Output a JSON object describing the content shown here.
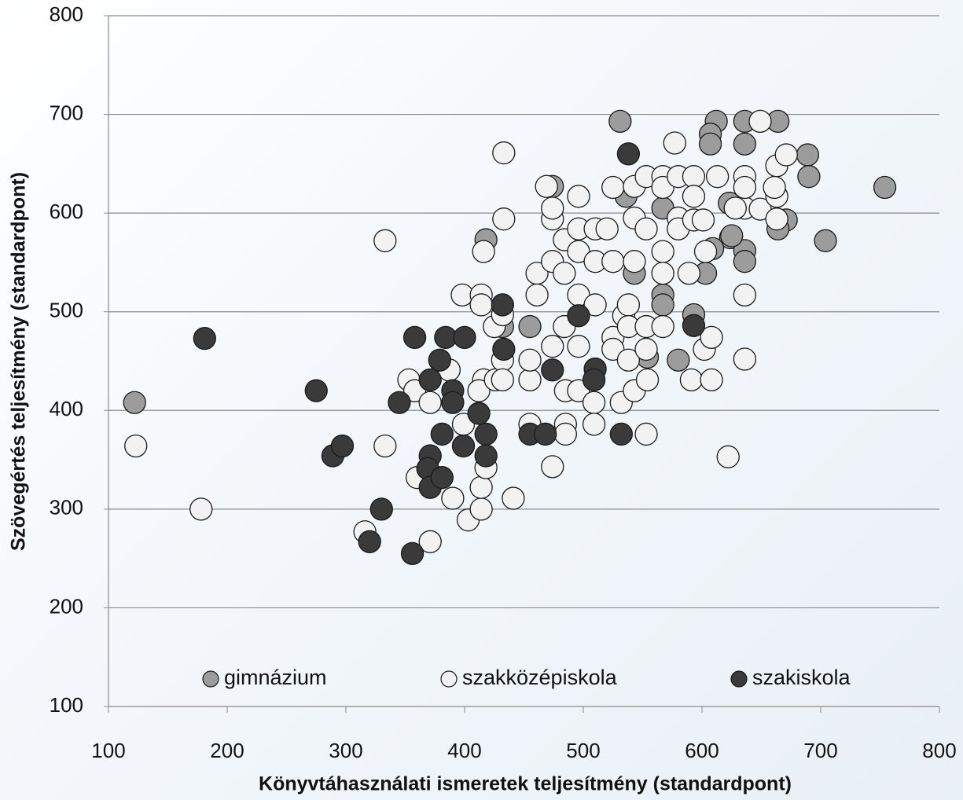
{
  "chart_data": {
    "type": "scatter",
    "x_label": "Könyvtáhasználati ismeretek teljesítmény (standardpont)",
    "y_label": "Szövegértés teljesítmény (standardpont)",
    "xlim": [
      100,
      800
    ],
    "ylim": [
      100,
      800
    ],
    "xticks": [
      100,
      200,
      300,
      400,
      500,
      600,
      700,
      800
    ],
    "yticks": [
      100,
      200,
      300,
      400,
      500,
      600,
      700,
      800
    ],
    "grid": true,
    "legend": "bottom",
    "series": [
      {
        "name": "gimnázium",
        "color": "#9c9c9c",
        "x": [
          122,
          418,
          474,
          531,
          612,
          636,
          664,
          607,
          607,
          636,
          689,
          690,
          754,
          704,
          671,
          664,
          624,
          636,
          636,
          603,
          609,
          623,
          625,
          567,
          567,
          567,
          543,
          554,
          580,
          593,
          455,
          432,
          536
        ],
        "values": [
          408,
          573,
          627,
          693,
          693,
          693,
          693,
          680,
          670,
          670,
          659,
          637,
          626,
          572,
          593,
          584,
          575,
          562,
          551,
          539,
          564,
          610,
          577,
          605,
          517,
          507,
          539,
          454,
          451,
          497,
          485,
          485,
          617
        ]
      },
      {
        "name": "szakközépiskola",
        "color": "#f2f2f2",
        "x": [
          123,
          178,
          333,
          333,
          316,
          371,
          360,
          353,
          358,
          371,
          387,
          398,
          414,
          414,
          416,
          433,
          433,
          390,
          403,
          414,
          414,
          418,
          399,
          416,
          412,
          426,
          425,
          432,
          432,
          432,
          441,
          455,
          455,
          455,
          461,
          461,
          469,
          474,
          474,
          474,
          474,
          474,
          484,
          484,
          485,
          485,
          485,
          484,
          496,
          496,
          496,
          496,
          496,
          496,
          510,
          510,
          510,
          509,
          509,
          520,
          525,
          525,
          525,
          525,
          534,
          532,
          543,
          543,
          543,
          538,
          538,
          538,
          543,
          553,
          553,
          553,
          553,
          554,
          553,
          567,
          567,
          567,
          567,
          567,
          577,
          580,
          580,
          580,
          593,
          593,
          589,
          593,
          601,
          603,
          602,
          591,
          608,
          608,
          613,
          622,
          636,
          636,
          636,
          636,
          636,
          649,
          663,
          663,
          663,
          671,
          649,
          661,
          628
        ],
        "values": [
          364,
          300,
          572,
          364,
          277,
          267,
          332,
          431,
          420,
          408,
          441,
          517,
          517,
          507,
          561,
          661,
          594,
          311,
          289,
          300,
          322,
          342,
          386,
          431,
          420,
          431,
          485,
          497,
          451,
          431,
          311,
          386,
          431,
          451,
          539,
          517,
          627,
          594,
          605,
          551,
          465,
          343,
          573,
          485,
          420,
          386,
          376,
          539,
          617,
          584,
          561,
          517,
          465,
          420,
          584,
          551,
          507,
          408,
          386,
          584,
          626,
          551,
          474,
          462,
          496,
          408,
          627,
          595,
          551,
          507,
          485,
          451,
          420,
          584,
          637,
          485,
          462,
          431,
          376,
          637,
          626,
          561,
          539,
          485,
          671,
          637,
          595,
          584,
          637,
          617,
          539,
          593,
          593,
          561,
          462,
          431,
          474,
          431,
          637,
          353,
          637,
          605,
          626,
          517,
          452,
          604,
          594,
          617,
          648,
          659,
          693,
          626,
          605
        ]
      },
      {
        "name": "szakiskola",
        "color": "#3a3a3a",
        "x": [
          181,
          275,
          289,
          297,
          330,
          320,
          356,
          345,
          358,
          384,
          400,
          379,
          371,
          390,
          390,
          412,
          381,
          399,
          371,
          369,
          371,
          381,
          418,
          418,
          432,
          433,
          455,
          468,
          474,
          496,
          510,
          509,
          532,
          538,
          593
        ],
        "values": [
          473,
          420,
          354,
          364,
          300,
          267,
          255,
          408,
          474,
          474,
          474,
          451,
          431,
          420,
          408,
          397,
          376,
          364,
          354,
          341,
          322,
          332,
          376,
          354,
          507,
          462,
          376,
          376,
          441,
          496,
          442,
          431,
          376,
          660,
          486
        ]
      }
    ]
  }
}
